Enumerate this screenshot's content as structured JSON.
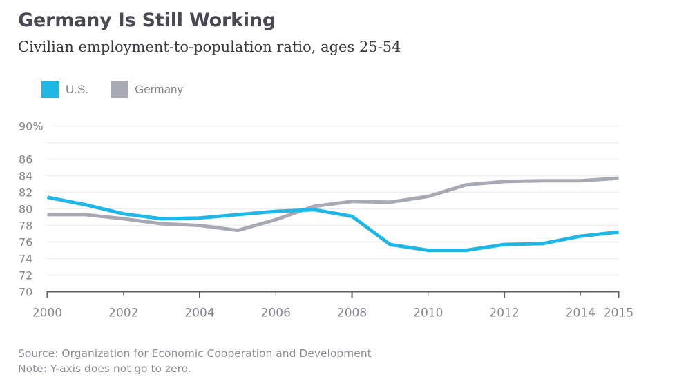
{
  "title": "Germany Is Still Working",
  "subtitle": "Civilian employment-to-population ratio, ages 25-54",
  "footer": {
    "source": "Source: Organization for Economic Cooperation and Development",
    "note": "Note: Y-axis does not go to zero."
  },
  "chart_data": {
    "type": "line",
    "title": "Germany Is Still Working",
    "subtitle": "Civilian employment-to-population ratio, ages 25-54",
    "xlabel": "",
    "ylabel": "",
    "x": [
      2000,
      2001,
      2002,
      2003,
      2004,
      2005,
      2006,
      2007,
      2008,
      2009,
      2010,
      2011,
      2012,
      2013,
      2014,
      2015
    ],
    "xlim": [
      2000,
      2015
    ],
    "ylim": [
      70,
      90
    ],
    "x_ticks": [
      2000,
      2002,
      2004,
      2006,
      2008,
      2010,
      2012,
      2014,
      2015
    ],
    "x_tick_labels": [
      "2000",
      "2002",
      "2004",
      "2006",
      "2008",
      "2010",
      "2012",
      "2014",
      "2015"
    ],
    "y_gridlines": [
      70,
      72,
      74,
      76,
      78,
      80,
      82,
      84,
      86,
      88,
      90
    ],
    "y_tick_labels": [
      {
        "value": 90,
        "label": "90%"
      },
      {
        "value": 86,
        "label": "86"
      },
      {
        "value": 84,
        "label": "84"
      },
      {
        "value": 82,
        "label": "82"
      },
      {
        "value": 80,
        "label": "80"
      },
      {
        "value": 78,
        "label": "78"
      },
      {
        "value": 76,
        "label": "76"
      },
      {
        "value": 74,
        "label": "74"
      },
      {
        "value": 72,
        "label": "72"
      },
      {
        "value": 70,
        "label": "70"
      }
    ],
    "grid": true,
    "legend_position": "top-left",
    "series": [
      {
        "name": "U.S.",
        "color": "#1fb8e6",
        "values": [
          81.4,
          80.5,
          79.4,
          78.8,
          78.9,
          79.3,
          79.7,
          79.9,
          79.1,
          75.7,
          75.0,
          75.0,
          75.7,
          75.8,
          76.7,
          77.2
        ]
      },
      {
        "name": "Germany",
        "color": "#a9a8b5",
        "values": [
          79.3,
          79.3,
          78.8,
          78.2,
          78.0,
          77.4,
          78.7,
          80.3,
          80.9,
          80.8,
          81.5,
          82.9,
          83.3,
          83.4,
          83.4,
          83.7
        ]
      }
    ]
  }
}
